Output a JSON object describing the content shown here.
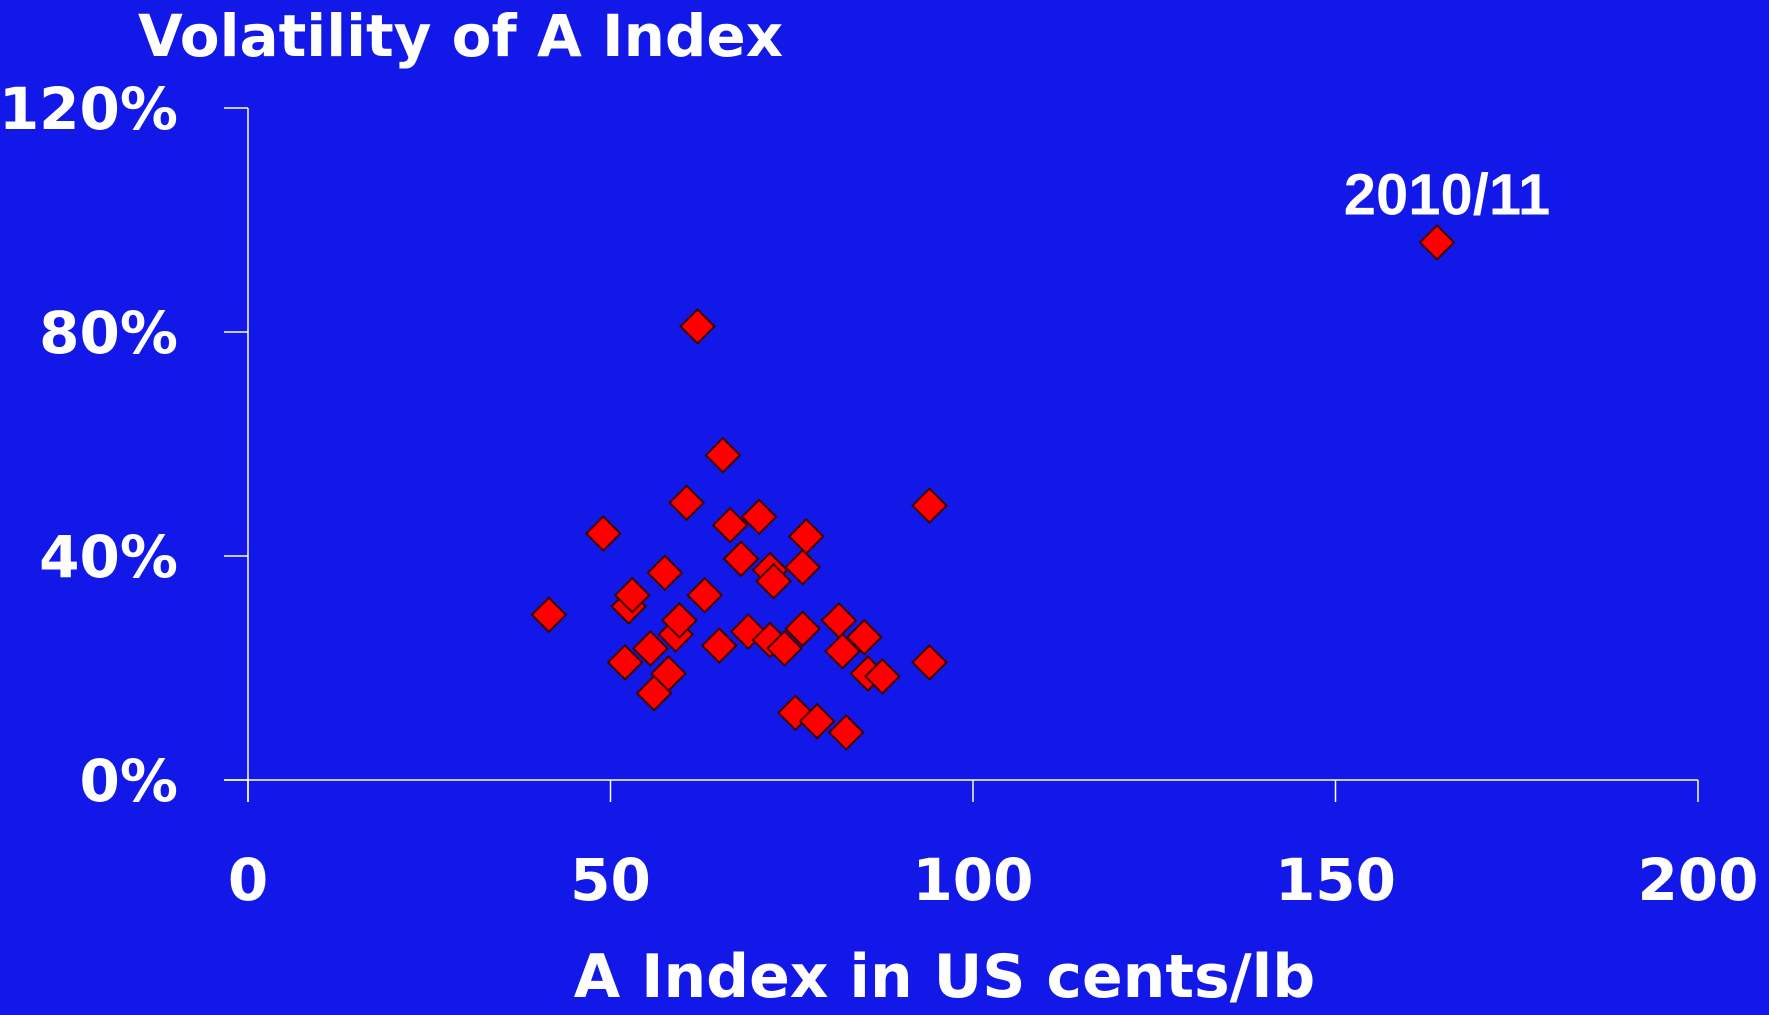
{
  "chart_data": {
    "type": "scatter",
    "title": "Volatility of A Index",
    "xlabel": "A Index in US cents/lb",
    "ylabel": "",
    "xlim": [
      0,
      200
    ],
    "ylim": [
      0,
      1.2
    ],
    "x_ticks": [
      0,
      50,
      100,
      150,
      200
    ],
    "x_tick_labels": [
      "0",
      "50",
      "100",
      "150",
      "200"
    ],
    "y_ticks": [
      0,
      0.4,
      0.8,
      1.2
    ],
    "y_tick_labels": [
      "0%",
      "40%",
      "80%",
      "120%"
    ],
    "grid": false,
    "legend": "none",
    "marker": "diamond",
    "marker_color": "#FF0000",
    "marker_edge_color": "#400000",
    "background_color": "#1118E8",
    "text_color": "#FFFFFF",
    "points": [
      {
        "x": 41.5,
        "y": 0.295
      },
      {
        "x": 49,
        "y": 0.44
      },
      {
        "x": 52,
        "y": 0.21
      },
      {
        "x": 52.5,
        "y": 0.31
      },
      {
        "x": 53,
        "y": 0.33
      },
      {
        "x": 55.5,
        "y": 0.235
      },
      {
        "x": 56,
        "y": 0.155
      },
      {
        "x": 57.5,
        "y": 0.37
      },
      {
        "x": 58,
        "y": 0.19
      },
      {
        "x": 59,
        "y": 0.26
      },
      {
        "x": 59.5,
        "y": 0.285
      },
      {
        "x": 60.5,
        "y": 0.495
      },
      {
        "x": 62,
        "y": 0.81
      },
      {
        "x": 63,
        "y": 0.33
      },
      {
        "x": 65,
        "y": 0.24
      },
      {
        "x": 65.5,
        "y": 0.58
      },
      {
        "x": 66.5,
        "y": 0.455
      },
      {
        "x": 68,
        "y": 0.395
      },
      {
        "x": 69,
        "y": 0.265
      },
      {
        "x": 70.5,
        "y": 0.47
      },
      {
        "x": 72,
        "y": 0.375
      },
      {
        "x": 72,
        "y": 0.25
      },
      {
        "x": 72.5,
        "y": 0.355
      },
      {
        "x": 74,
        "y": 0.235
      },
      {
        "x": 75.5,
        "y": 0.12
      },
      {
        "x": 76.5,
        "y": 0.38
      },
      {
        "x": 76.5,
        "y": 0.27
      },
      {
        "x": 77,
        "y": 0.435
      },
      {
        "x": 78.5,
        "y": 0.105
      },
      {
        "x": 81.5,
        "y": 0.285
      },
      {
        "x": 82,
        "y": 0.23
      },
      {
        "x": 82.5,
        "y": 0.085
      },
      {
        "x": 85,
        "y": 0.255
      },
      {
        "x": 85.5,
        "y": 0.19
      },
      {
        "x": 87.5,
        "y": 0.185
      },
      {
        "x": 94,
        "y": 0.49
      },
      {
        "x": 94,
        "y": 0.21
      },
      {
        "x": 164,
        "y": 0.96
      }
    ],
    "annotations": [
      {
        "text": "2010/11",
        "x": 164,
        "y": 0.96
      }
    ]
  }
}
